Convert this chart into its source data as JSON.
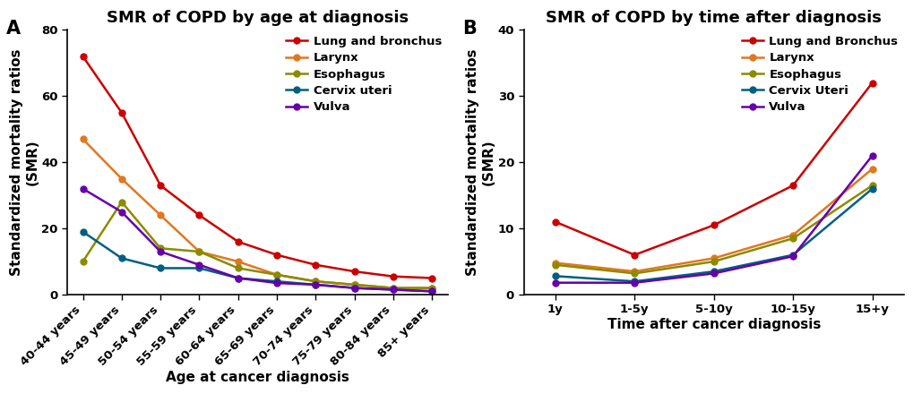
{
  "panel_A": {
    "title": "SMR of COPD by age at diagnosis",
    "xlabel": "Age at cancer diagnosis",
    "ylabel": "Standardized mortality ratios\n(SMR)",
    "x_labels": [
      "40-44 years",
      "45-49 years",
      "50-54 years",
      "55-59 years",
      "60-64 years",
      "65-69 years",
      "70-74 years",
      "75-79 years",
      "80-84 years",
      "85+ years"
    ],
    "ylim": [
      0,
      80
    ],
    "yticks": [
      0,
      20,
      40,
      60,
      80
    ],
    "series": [
      {
        "label": "Lung and bronchus",
        "color": "#cc0000",
        "values": [
          72,
          55,
          33,
          24,
          16,
          12,
          9,
          7,
          5.5,
          5
        ]
      },
      {
        "label": "Larynx",
        "color": "#e07820",
        "values": [
          47,
          35,
          24,
          13,
          10,
          6,
          4,
          3,
          2,
          2
        ]
      },
      {
        "label": "Esophagus",
        "color": "#8b8b00",
        "values": [
          10,
          28,
          14,
          13,
          8,
          6,
          4,
          3,
          2,
          2
        ]
      },
      {
        "label": "Cervix uteri",
        "color": "#006080",
        "values": [
          19,
          11,
          8,
          8,
          5,
          4,
          3,
          2,
          1.5,
          1
        ]
      },
      {
        "label": "Vulva",
        "color": "#6600aa",
        "values": [
          32,
          25,
          13,
          9,
          5,
          3.5,
          3,
          2,
          1.5,
          1
        ]
      }
    ]
  },
  "panel_B": {
    "title": "SMR of COPD by time after diagnosis",
    "xlabel": "Time after cancer diagnosis",
    "ylabel": "Standardized mortality ratios\n(SMR)",
    "x_labels": [
      "1y",
      "1-5y",
      "5-10y",
      "10-15y",
      "15+y"
    ],
    "ylim": [
      0,
      40
    ],
    "yticks": [
      0,
      10,
      20,
      30,
      40
    ],
    "series": [
      {
        "label": "Lung and Bronchus",
        "color": "#cc0000",
        "values": [
          11,
          6,
          10.5,
          16.5,
          32
        ]
      },
      {
        "label": "Larynx",
        "color": "#e07820",
        "values": [
          4.8,
          3.5,
          5.5,
          9,
          19
        ]
      },
      {
        "label": "Esophagus",
        "color": "#8b8b00",
        "values": [
          4.5,
          3.2,
          5,
          8.5,
          16.5
        ]
      },
      {
        "label": "Cervix Uteri",
        "color": "#006080",
        "values": [
          2.8,
          2.0,
          3.5,
          6,
          16
        ]
      },
      {
        "label": "Vulva",
        "color": "#6600aa",
        "values": [
          1.8,
          1.8,
          3.2,
          5.8,
          21
        ]
      }
    ]
  },
  "background_color": "#ffffff",
  "title_fontsize": 13,
  "label_fontsize": 11,
  "tick_fontsize": 9.5,
  "legend_fontsize": 9.5,
  "line_width": 1.8,
  "marker_size": 5
}
